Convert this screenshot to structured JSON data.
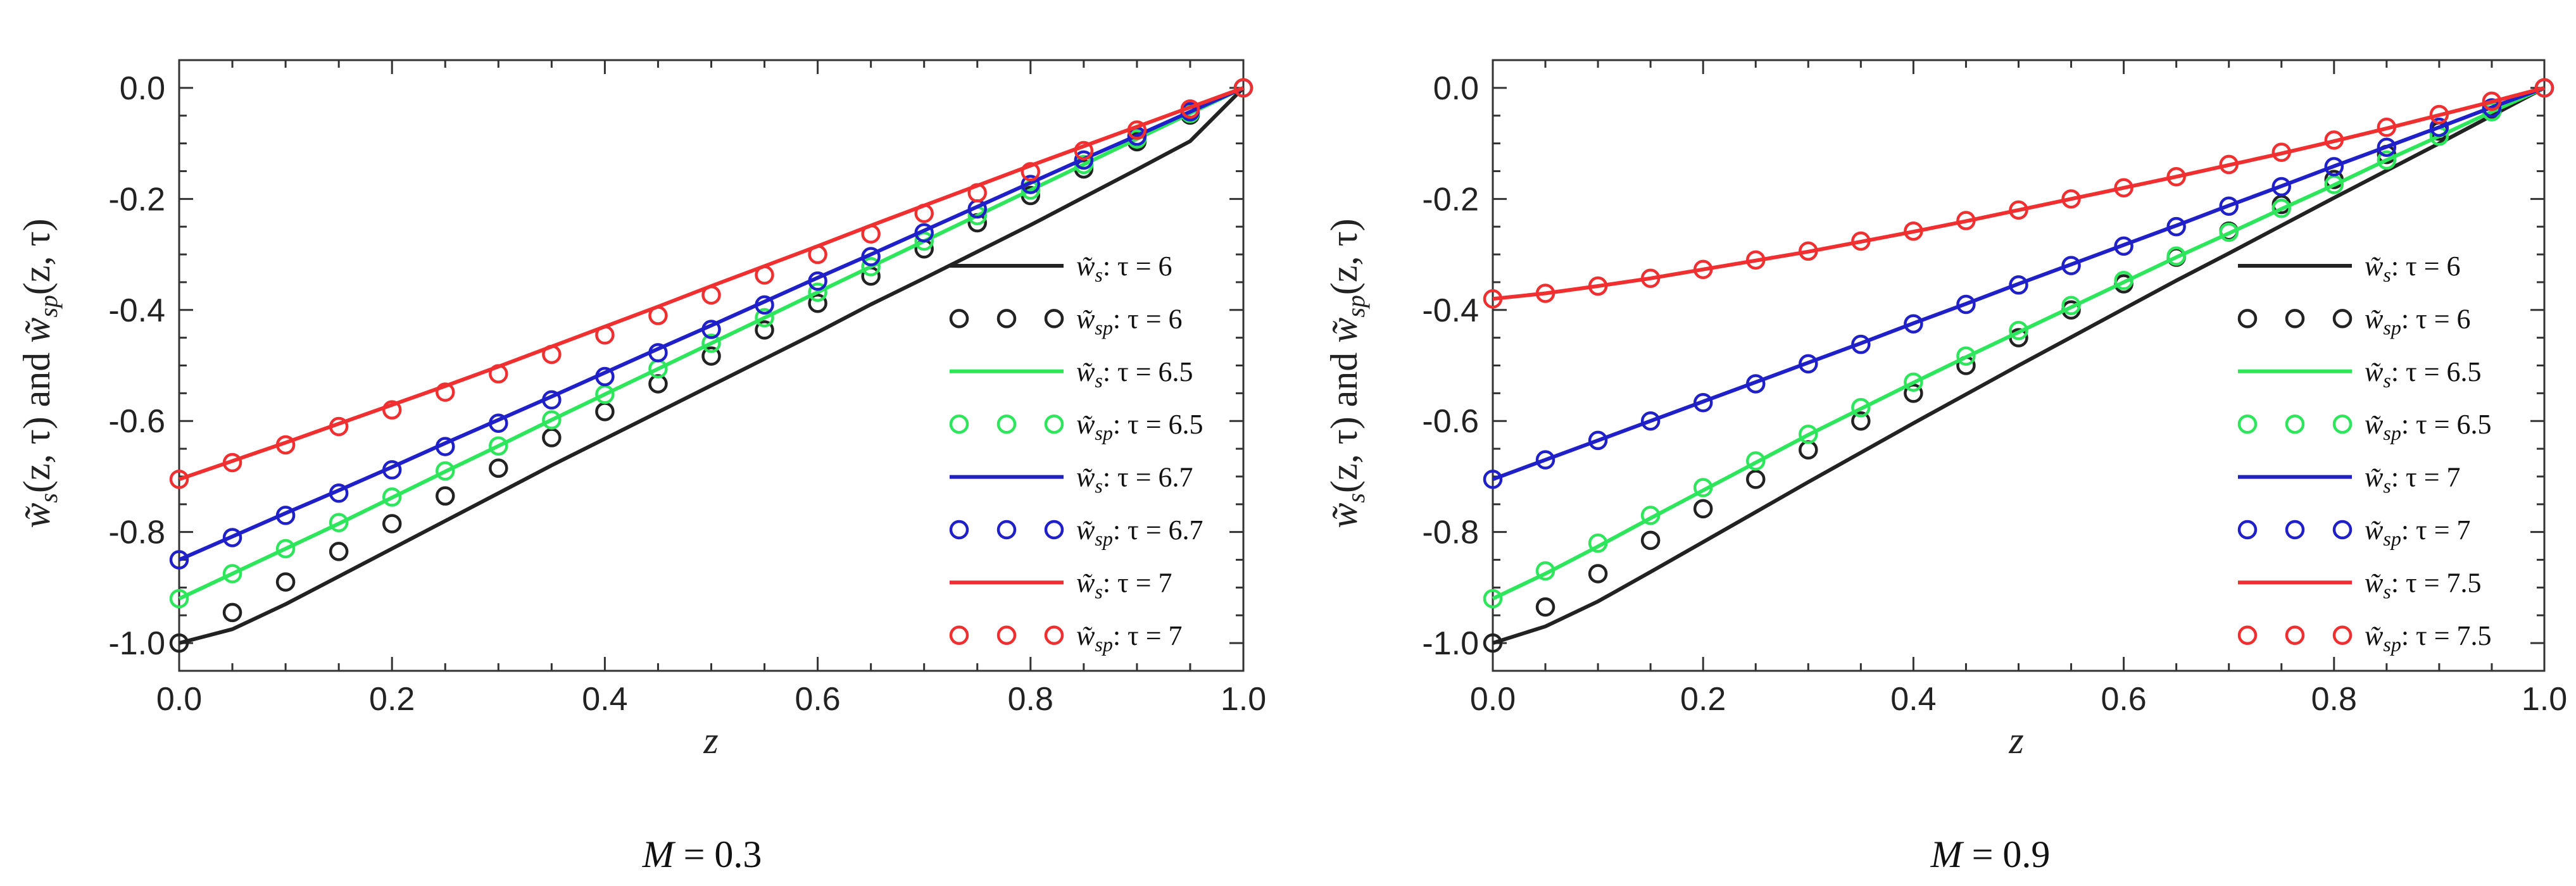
{
  "chart_data": [
    {
      "type": "line",
      "panel": "left",
      "caption": {
        "symbol": "M",
        "eq": " = 0.3"
      },
      "xlabel": "z",
      "ylabel": "w̃s(z, τ) and w̃sp(z, τ)",
      "ylabel_parts": {
        "s_sym": "w̃",
        "s_sub": "s",
        "s_args": "(z, τ)",
        "and": " and ",
        "sp_sym": "w̃",
        "sp_sub": "sp",
        "sp_args": "(z, τ)"
      },
      "xlim": [
        0,
        1
      ],
      "ylim": [
        -1.05,
        0.05
      ],
      "xticks": [
        0.0,
        0.2,
        0.4,
        0.6,
        0.8,
        1.0
      ],
      "xtick_labels": [
        "0.0",
        "0.2",
        "0.4",
        "0.6",
        "0.8",
        "1.0"
      ],
      "yticks": [
        0.0,
        -0.2,
        -0.4,
        -0.6,
        -0.8,
        -1.0
      ],
      "ytick_labels": [
        "0.0",
        "-0.2",
        "-0.4",
        "-0.6",
        "-0.8",
        "-1.0"
      ],
      "series": [
        {
          "name": "w̃s: τ = 6",
          "kind": "line",
          "color": "#222222",
          "sub": "s",
          "tau": "τ = 6",
          "x": [
            0.0,
            0.05,
            0.1,
            0.15,
            0.2,
            0.25,
            0.3,
            0.35,
            0.4,
            0.45,
            0.5,
            0.55,
            0.6,
            0.65,
            0.7,
            0.75,
            0.8,
            0.85,
            0.9,
            0.95,
            1.0
          ],
          "y": [
            -1.0,
            -0.975,
            -0.93,
            -0.88,
            -0.83,
            -0.78,
            -0.73,
            -0.68,
            -0.632,
            -0.584,
            -0.536,
            -0.488,
            -0.44,
            -0.39,
            -0.343,
            -0.295,
            -0.247,
            -0.197,
            -0.147,
            -0.096,
            0.0
          ]
        },
        {
          "name": "w̃sp: τ = 6",
          "kind": "points",
          "color": "#222222",
          "sub": "sp",
          "tau": "τ = 6",
          "x": [
            0.0,
            0.05,
            0.1,
            0.15,
            0.2,
            0.25,
            0.3,
            0.35,
            0.4,
            0.45,
            0.5,
            0.55,
            0.6,
            0.65,
            0.7,
            0.75,
            0.8,
            0.85,
            0.9,
            0.95,
            1.0
          ],
          "y": [
            -1.0,
            -0.945,
            -0.89,
            -0.835,
            -0.785,
            -0.735,
            -0.685,
            -0.63,
            -0.583,
            -0.533,
            -0.483,
            -0.436,
            -0.388,
            -0.339,
            -0.29,
            -0.243,
            -0.194,
            -0.146,
            -0.097,
            -0.049,
            0.0
          ]
        },
        {
          "name": "w̃s: τ = 6.5",
          "kind": "line",
          "color": "#2ee65c",
          "sub": "s",
          "tau": "τ = 6.5",
          "x": [
            0.0,
            0.05,
            0.1,
            0.15,
            0.2,
            0.25,
            0.3,
            0.35,
            0.4,
            0.45,
            0.5,
            0.55,
            0.6,
            0.65,
            0.7,
            0.75,
            0.8,
            0.85,
            0.9,
            0.95,
            1.0
          ],
          "y": [
            -0.92,
            -0.875,
            -0.83,
            -0.785,
            -0.738,
            -0.691,
            -0.645,
            -0.598,
            -0.552,
            -0.506,
            -0.46,
            -0.414,
            -0.368,
            -0.322,
            -0.276,
            -0.23,
            -0.184,
            -0.138,
            -0.092,
            -0.046,
            0.0
          ]
        },
        {
          "name": "w̃sp: τ = 6.5",
          "kind": "points",
          "color": "#2ee65c",
          "sub": "sp",
          "tau": "τ = 6.5",
          "x": [
            0.0,
            0.05,
            0.1,
            0.15,
            0.2,
            0.25,
            0.3,
            0.35,
            0.4,
            0.45,
            0.5,
            0.55,
            0.6,
            0.65,
            0.7,
            0.75,
            0.8,
            0.85,
            0.9,
            0.95,
            1.0
          ],
          "y": [
            -0.92,
            -0.875,
            -0.83,
            -0.783,
            -0.737,
            -0.69,
            -0.645,
            -0.598,
            -0.552,
            -0.506,
            -0.46,
            -0.414,
            -0.368,
            -0.322,
            -0.276,
            -0.23,
            -0.184,
            -0.138,
            -0.092,
            -0.046,
            0.0
          ]
        },
        {
          "name": "w̃s: τ = 6.7",
          "kind": "line",
          "color": "#2020c8",
          "sub": "s",
          "tau": "τ = 6.7",
          "x": [
            0.0,
            0.05,
            0.1,
            0.15,
            0.2,
            0.25,
            0.3,
            0.35,
            0.4,
            0.45,
            0.5,
            0.55,
            0.6,
            0.65,
            0.7,
            0.75,
            0.8,
            0.85,
            0.9,
            0.95,
            1.0
          ],
          "y": [
            -0.85,
            -0.808,
            -0.766,
            -0.725,
            -0.683,
            -0.64,
            -0.598,
            -0.556,
            -0.513,
            -0.47,
            -0.428,
            -0.385,
            -0.342,
            -0.3,
            -0.257,
            -0.214,
            -0.171,
            -0.128,
            -0.086,
            -0.043,
            0.0
          ]
        },
        {
          "name": "w̃sp: τ = 6.7",
          "kind": "points",
          "color": "#2020c8",
          "sub": "sp",
          "tau": "τ = 6.7",
          "x": [
            0.0,
            0.05,
            0.1,
            0.15,
            0.2,
            0.25,
            0.3,
            0.35,
            0.4,
            0.45,
            0.5,
            0.55,
            0.6,
            0.65,
            0.7,
            0.75,
            0.8,
            0.85,
            0.9,
            0.95,
            1.0
          ],
          "y": [
            -0.85,
            -0.81,
            -0.77,
            -0.73,
            -0.688,
            -0.646,
            -0.604,
            -0.562,
            -0.52,
            -0.477,
            -0.435,
            -0.391,
            -0.348,
            -0.304,
            -0.261,
            -0.218,
            -0.174,
            -0.13,
            -0.087,
            -0.043,
            0.0
          ]
        },
        {
          "name": "w̃s: τ = 7",
          "kind": "line",
          "color": "#f03030",
          "sub": "s",
          "tau": "τ = 7",
          "x": [
            0.0,
            0.05,
            0.1,
            0.15,
            0.2,
            0.25,
            0.3,
            0.35,
            0.4,
            0.45,
            0.5,
            0.55,
            0.6,
            0.65,
            0.7,
            0.75,
            0.8,
            0.85,
            0.9,
            0.95,
            1.0
          ],
          "y": [
            -0.705,
            -0.672,
            -0.639,
            -0.605,
            -0.571,
            -0.537,
            -0.502,
            -0.466,
            -0.43,
            -0.394,
            -0.357,
            -0.321,
            -0.285,
            -0.248,
            -0.212,
            -0.176,
            -0.14,
            -0.105,
            -0.07,
            -0.035,
            0.0
          ]
        },
        {
          "name": "w̃sp: τ = 7",
          "kind": "points",
          "color": "#f03030",
          "sub": "sp",
          "tau": "τ = 7",
          "x": [
            0.0,
            0.05,
            0.1,
            0.15,
            0.2,
            0.25,
            0.3,
            0.35,
            0.4,
            0.45,
            0.5,
            0.55,
            0.6,
            0.65,
            0.7,
            0.75,
            0.8,
            0.85,
            0.9,
            0.95,
            1.0
          ],
          "y": [
            -0.705,
            -0.675,
            -0.643,
            -0.61,
            -0.58,
            -0.548,
            -0.515,
            -0.48,
            -0.445,
            -0.41,
            -0.373,
            -0.337,
            -0.3,
            -0.263,
            -0.226,
            -0.189,
            -0.151,
            -0.113,
            -0.076,
            -0.038,
            0.0
          ]
        }
      ]
    },
    {
      "type": "line",
      "panel": "right",
      "caption": {
        "symbol": "M",
        "eq": " = 0.9"
      },
      "xlabel": "z",
      "ylabel": "w̃s(z, τ) and w̃sp(z, τ)",
      "ylabel_parts": {
        "s_sym": "w̃",
        "s_sub": "s",
        "s_args": "(z, τ)",
        "and": " and ",
        "sp_sym": "w̃",
        "sp_sub": "sp",
        "sp_args": "(z, τ)"
      },
      "xlim": [
        0,
        1
      ],
      "ylim": [
        -1.05,
        0.05
      ],
      "xticks": [
        0.0,
        0.2,
        0.4,
        0.6,
        0.8,
        1.0
      ],
      "xtick_labels": [
        "0.0",
        "0.2",
        "0.4",
        "0.6",
        "0.8",
        "1.0"
      ],
      "yticks": [
        0.0,
        -0.2,
        -0.4,
        -0.6,
        -0.8,
        -1.0
      ],
      "ytick_labels": [
        "0.0",
        "-0.2",
        "-0.4",
        "-0.6",
        "-0.8",
        "-1.0"
      ],
      "series": [
        {
          "name": "w̃s: τ = 6",
          "kind": "line",
          "color": "#222222",
          "sub": "s",
          "tau": "τ = 6",
          "x": [
            0.0,
            0.05,
            0.1,
            0.15,
            0.2,
            0.25,
            0.3,
            0.35,
            0.4,
            0.45,
            0.5,
            0.55,
            0.6,
            0.65,
            0.7,
            0.75,
            0.8,
            0.85,
            0.9,
            0.95,
            1.0
          ],
          "y": [
            -1.0,
            -0.97,
            -0.925,
            -0.872,
            -0.818,
            -0.764,
            -0.71,
            -0.657,
            -0.604,
            -0.552,
            -0.5,
            -0.449,
            -0.398,
            -0.347,
            -0.298,
            -0.248,
            -0.198,
            -0.149,
            -0.1,
            -0.05,
            0.0
          ]
        },
        {
          "name": "w̃sp: τ = 6",
          "kind": "points",
          "color": "#222222",
          "sub": "sp",
          "tau": "τ = 6",
          "x": [
            0.0,
            0.05,
            0.1,
            0.15,
            0.2,
            0.25,
            0.3,
            0.35,
            0.4,
            0.45,
            0.5,
            0.55,
            0.6,
            0.65,
            0.7,
            0.75,
            0.8,
            0.85,
            0.9,
            0.95,
            1.0
          ],
          "y": [
            -1.0,
            -0.935,
            -0.875,
            -0.815,
            -0.758,
            -0.705,
            -0.652,
            -0.6,
            -0.55,
            -0.5,
            -0.45,
            -0.4,
            -0.353,
            -0.305,
            -0.258,
            -0.21,
            -0.165,
            -0.12,
            -0.078,
            -0.038,
            0.0
          ]
        },
        {
          "name": "w̃s: τ = 6.5",
          "kind": "line",
          "color": "#2ee65c",
          "sub": "s",
          "tau": "τ = 6.5",
          "x": [
            0.0,
            0.05,
            0.1,
            0.15,
            0.2,
            0.25,
            0.3,
            0.35,
            0.4,
            0.45,
            0.5,
            0.55,
            0.6,
            0.65,
            0.7,
            0.75,
            0.8,
            0.85,
            0.9,
            0.95,
            1.0
          ],
          "y": [
            -0.92,
            -0.875,
            -0.826,
            -0.775,
            -0.725,
            -0.675,
            -0.625,
            -0.578,
            -0.531,
            -0.485,
            -0.44,
            -0.395,
            -0.35,
            -0.305,
            -0.262,
            -0.218,
            -0.175,
            -0.13,
            -0.087,
            -0.043,
            0.0
          ]
        },
        {
          "name": "w̃sp: τ = 6.5",
          "kind": "points",
          "color": "#2ee65c",
          "sub": "sp",
          "tau": "τ = 6.5",
          "x": [
            0.0,
            0.05,
            0.1,
            0.15,
            0.2,
            0.25,
            0.3,
            0.35,
            0.4,
            0.45,
            0.5,
            0.55,
            0.6,
            0.65,
            0.7,
            0.75,
            0.8,
            0.85,
            0.9,
            0.95,
            1.0
          ],
          "y": [
            -0.92,
            -0.87,
            -0.82,
            -0.77,
            -0.72,
            -0.672,
            -0.624,
            -0.576,
            -0.53,
            -0.483,
            -0.437,
            -0.392,
            -0.347,
            -0.303,
            -0.26,
            -0.217,
            -0.174,
            -0.13,
            -0.087,
            -0.043,
            0.0
          ]
        },
        {
          "name": "w̃s: τ = 7",
          "kind": "line",
          "color": "#2020c8",
          "sub": "s",
          "tau": "τ = 7",
          "x": [
            0.0,
            0.05,
            0.1,
            0.15,
            0.2,
            0.25,
            0.3,
            0.35,
            0.4,
            0.45,
            0.5,
            0.55,
            0.6,
            0.65,
            0.7,
            0.75,
            0.8,
            0.85,
            0.9,
            0.95,
            1.0
          ],
          "y": [
            -0.705,
            -0.67,
            -0.635,
            -0.6,
            -0.565,
            -0.53,
            -0.495,
            -0.46,
            -0.424,
            -0.389,
            -0.353,
            -0.318,
            -0.283,
            -0.248,
            -0.212,
            -0.177,
            -0.141,
            -0.106,
            -0.071,
            -0.035,
            0.0
          ]
        },
        {
          "name": "w̃sp: τ = 7",
          "kind": "points",
          "color": "#2020c8",
          "sub": "sp",
          "tau": "τ = 7",
          "x": [
            0.0,
            0.05,
            0.1,
            0.15,
            0.2,
            0.25,
            0.3,
            0.35,
            0.4,
            0.45,
            0.5,
            0.55,
            0.6,
            0.65,
            0.7,
            0.75,
            0.8,
            0.85,
            0.9,
            0.95,
            1.0
          ],
          "y": [
            -0.705,
            -0.67,
            -0.635,
            -0.6,
            -0.567,
            -0.533,
            -0.497,
            -0.462,
            -0.425,
            -0.39,
            -0.355,
            -0.32,
            -0.285,
            -0.25,
            -0.213,
            -0.178,
            -0.142,
            -0.107,
            -0.071,
            -0.036,
            0.0
          ]
        },
        {
          "name": "w̃s: τ = 7.5",
          "kind": "line",
          "color": "#f03030",
          "sub": "s",
          "tau": "τ = 7.5",
          "x": [
            0.0,
            0.05,
            0.1,
            0.15,
            0.2,
            0.25,
            0.3,
            0.35,
            0.4,
            0.45,
            0.5,
            0.55,
            0.6,
            0.65,
            0.7,
            0.75,
            0.8,
            0.85,
            0.9,
            0.95,
            1.0
          ],
          "y": [
            -0.38,
            -0.37,
            -0.357,
            -0.343,
            -0.327,
            -0.311,
            -0.295,
            -0.277,
            -0.259,
            -0.24,
            -0.22,
            -0.2,
            -0.18,
            -0.16,
            -0.139,
            -0.118,
            -0.096,
            -0.073,
            -0.049,
            -0.025,
            0.0
          ]
        },
        {
          "name": "w̃sp: τ = 7.5",
          "kind": "points",
          "color": "#f03030",
          "sub": "sp",
          "tau": "τ = 7.5",
          "x": [
            0.0,
            0.05,
            0.1,
            0.15,
            0.2,
            0.25,
            0.3,
            0.35,
            0.4,
            0.45,
            0.5,
            0.55,
            0.6,
            0.65,
            0.7,
            0.75,
            0.8,
            0.85,
            0.9,
            0.95,
            1.0
          ],
          "y": [
            -0.38,
            -0.37,
            -0.357,
            -0.343,
            -0.327,
            -0.31,
            -0.294,
            -0.276,
            -0.258,
            -0.239,
            -0.22,
            -0.2,
            -0.18,
            -0.16,
            -0.138,
            -0.116,
            -0.094,
            -0.071,
            -0.048,
            -0.024,
            0.0
          ]
        }
      ]
    }
  ]
}
